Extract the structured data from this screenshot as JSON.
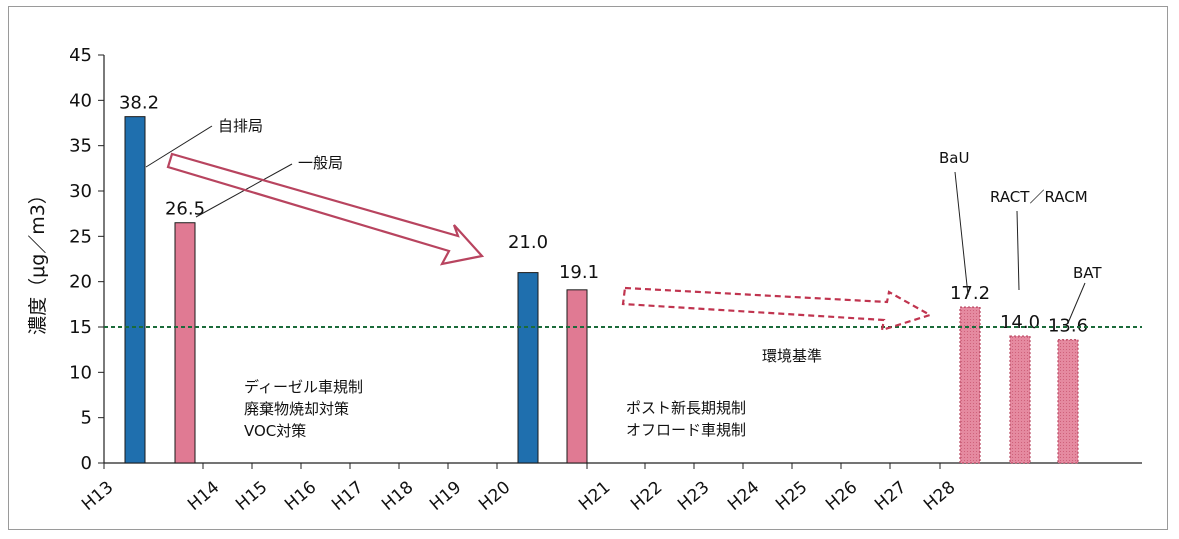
{
  "chart_data": {
    "type": "bar",
    "ylabel": "濃度（μg／m3）",
    "ylim": [
      0,
      45
    ],
    "yticks": [
      "0",
      "5",
      "10",
      "15",
      "20",
      "25",
      "30",
      "35",
      "40",
      "45"
    ],
    "x_ticks": [
      "H13",
      "H14",
      "H15",
      "H16",
      "H17",
      "H18",
      "H19",
      "H20",
      "H21",
      "H22",
      "H23",
      "H24",
      "H25",
      "H26",
      "H27",
      "H28"
    ],
    "bars": [
      {
        "label": "38.2",
        "value": 38.2,
        "year": "H13",
        "kind": "自排局",
        "color": "#1f6fae",
        "style": "solid"
      },
      {
        "label": "26.5",
        "value": 26.5,
        "year": "H13",
        "kind": "一般局",
        "color": "#e07a93",
        "style": "solid"
      },
      {
        "label": "21.0",
        "value": 21.0,
        "year": "H20",
        "kind": "自排局",
        "color": "#1f6fae",
        "style": "solid"
      },
      {
        "label": "19.1",
        "value": 19.1,
        "year": "H20",
        "kind": "一般局",
        "color": "#e07a93",
        "style": "solid"
      },
      {
        "label": "17.2",
        "value": 17.2,
        "year": "H28",
        "kind": "BaU",
        "color": "#e07a93",
        "style": "dotted"
      },
      {
        "label": "14.0",
        "value": 14.0,
        "year": "H28",
        "kind": "RACT／RACM",
        "color": "#e07a93",
        "style": "dotted"
      },
      {
        "label": "13.6",
        "value": 13.6,
        "year": "H28",
        "kind": "BAT",
        "color": "#e07a93",
        "style": "dotted"
      }
    ],
    "standard": {
      "value": 15,
      "label": "環境基準",
      "color": "#1b6b3a"
    },
    "annotations": {
      "jihai": "自排局",
      "ippan": "一般局",
      "bau": "BaU",
      "ract": "RACT／RACM",
      "bat": "BAT",
      "measures1": [
        "ディーゼル車規制",
        "廃棄物焼却対策",
        "VOC対策"
      ],
      "measures2": [
        "ポスト新長期規制",
        "オフロード車規制"
      ]
    },
    "grid": false
  }
}
